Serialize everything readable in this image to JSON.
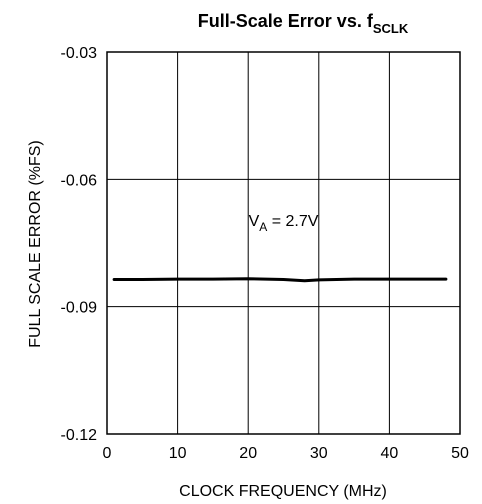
{
  "chart_data": {
    "type": "line",
    "title": "Full-Scale Error vs. f",
    "title_subscript": "SCLK",
    "xlabel": "CLOCK FREQUENCY (MHz)",
    "ylabel": "FULL SCALE ERROR (%FS)",
    "xlim": [
      0,
      50
    ],
    "ylim": [
      -0.12,
      -0.03
    ],
    "x_ticks": [
      0,
      10,
      20,
      30,
      40,
      50
    ],
    "x_tick_labels": [
      "0",
      "10",
      "20",
      "30",
      "40",
      "50"
    ],
    "y_ticks": [
      -0.03,
      -0.06,
      -0.09,
      -0.12
    ],
    "y_tick_labels": [
      "-0.03",
      "-0.06",
      "-0.09",
      "-0.12"
    ],
    "grid": true,
    "annotation": {
      "prefix": "V",
      "subscript": "A",
      "suffix": " = 2.7V",
      "x": 25,
      "y": -0.071
    },
    "series": [
      {
        "x": [
          1,
          5,
          10,
          15,
          20,
          25,
          28,
          30,
          35,
          40,
          45,
          48
        ],
        "y": [
          -0.0836,
          -0.0836,
          -0.0835,
          -0.0835,
          -0.0834,
          -0.0836,
          -0.0839,
          -0.0837,
          -0.0835,
          -0.0835,
          -0.0835,
          -0.0835
        ],
        "color": "#000000"
      }
    ]
  }
}
